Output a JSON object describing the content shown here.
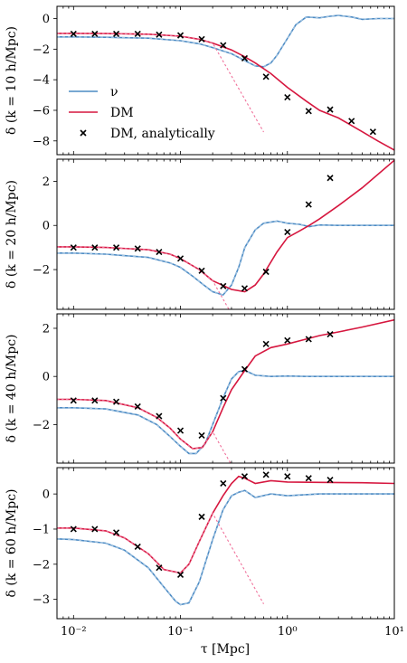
{
  "figure": {
    "xlabel": "τ [Mpc]",
    "x_scale": "log",
    "xlim": [
      0.007,
      10
    ],
    "x_tick_labels": [
      "10⁻²",
      "10⁻¹",
      "10⁰",
      "10¹"
    ]
  },
  "legend": {
    "placement": "lower-left (top panel)",
    "entries": [
      {
        "label": "ν",
        "style": "solid-line",
        "color": "#4c8bc4"
      },
      {
        "label": "DM",
        "style": "solid-line",
        "color": "#d6173f"
      },
      {
        "label": "DM, analytically",
        "style": "x-marker",
        "color": "#000000"
      }
    ]
  },
  "colors": {
    "nu": "#4c8bc4",
    "dm": "#d6173f",
    "analytic": "#000000",
    "dm_dashed": "#f0709a",
    "nu_dashed": "#a8c8e4"
  },
  "chart_data": [
    {
      "type": "line",
      "ylabel": "δ (k = 10 h/Mpc)",
      "ylim": [
        -8.9,
        0.8
      ],
      "yticks": [
        0,
        -2,
        -4,
        -6,
        -8
      ],
      "ytick_labels": [
        "0",
        "−2",
        "−4",
        "−6",
        "−8"
      ],
      "series": [
        {
          "name": "ν",
          "x": [
            0.007,
            0.01,
            0.02,
            0.05,
            0.1,
            0.15,
            0.2,
            0.3,
            0.4,
            0.5,
            0.6,
            0.7,
            0.8,
            1.0,
            1.2,
            1.5,
            2.0,
            2.5,
            3.0,
            4.0,
            5.0,
            7.0,
            10.0
          ],
          "y": [
            -1.2,
            -1.2,
            -1.22,
            -1.28,
            -1.45,
            -1.65,
            -1.9,
            -2.3,
            -2.75,
            -3.1,
            -3.15,
            -2.9,
            -2.4,
            -1.3,
            -0.4,
            0.1,
            0.05,
            0.15,
            0.2,
            0.1,
            -0.05,
            0.0,
            0.0
          ]
        },
        {
          "name": "DM",
          "x": [
            0.007,
            0.01,
            0.02,
            0.05,
            0.1,
            0.15,
            0.2,
            0.3,
            0.4,
            0.5,
            0.7,
            1.0,
            1.5,
            2.0,
            3.0,
            5.0,
            7.0,
            10.0
          ],
          "y": [
            -0.97,
            -0.97,
            -0.98,
            -1.02,
            -1.15,
            -1.35,
            -1.6,
            -2.05,
            -2.5,
            -2.9,
            -3.6,
            -4.5,
            -5.4,
            -6.0,
            -6.5,
            -7.4,
            -8.0,
            -8.6
          ]
        },
        {
          "name": "DM, analytically",
          "x": [
            0.01,
            0.0158,
            0.0251,
            0.0398,
            0.0631,
            0.1,
            0.158,
            0.251,
            0.398,
            0.631,
            1.0,
            1.58,
            2.51,
            3.98,
            6.31
          ],
          "y": [
            -1.0,
            -1.0,
            -1.0,
            -1.0,
            -1.05,
            -1.1,
            -1.35,
            -1.75,
            -2.6,
            -3.8,
            -5.15,
            -6.05,
            -5.95,
            -6.7,
            -7.4
          ]
        }
      ]
    },
    {
      "type": "line",
      "ylabel": "δ (k = 20 h/Mpc)",
      "ylim": [
        -3.8,
        3.0
      ],
      "yticks": [
        2,
        0,
        -2
      ],
      "ytick_labels": [
        "2",
        "0",
        "−2"
      ],
      "series": [
        {
          "name": "ν",
          "x": [
            0.007,
            0.01,
            0.02,
            0.05,
            0.08,
            0.1,
            0.13,
            0.16,
            0.2,
            0.25,
            0.3,
            0.35,
            0.4,
            0.5,
            0.6,
            0.8,
            1.0,
            1.3,
            1.6,
            2.0,
            3.0,
            5.0,
            10.0
          ],
          "y": [
            -1.25,
            -1.25,
            -1.3,
            -1.45,
            -1.7,
            -1.9,
            -2.3,
            -2.65,
            -3.0,
            -3.15,
            -2.7,
            -1.9,
            -1.0,
            -0.2,
            0.1,
            0.2,
            0.1,
            0.05,
            -0.05,
            0.02,
            0.0,
            0.0,
            0.0
          ]
        },
        {
          "name": "DM",
          "x": [
            0.007,
            0.01,
            0.02,
            0.05,
            0.08,
            0.1,
            0.15,
            0.2,
            0.3,
            0.4,
            0.5,
            0.6,
            0.8,
            1.0,
            1.3,
            1.6,
            2.0,
            3.0,
            5.0,
            10.0
          ],
          "y": [
            -0.97,
            -0.97,
            -1.0,
            -1.1,
            -1.3,
            -1.5,
            -2.0,
            -2.5,
            -2.9,
            -3.0,
            -2.7,
            -2.2,
            -1.2,
            -0.55,
            -0.25,
            0.0,
            0.3,
            0.9,
            1.7,
            2.95
          ]
        },
        {
          "name": "DM, analytically",
          "x": [
            0.01,
            0.0158,
            0.0251,
            0.0398,
            0.0631,
            0.1,
            0.158,
            0.251,
            0.398,
            0.631,
            1.0,
            1.58,
            2.51
          ],
          "y": [
            -1.0,
            -1.0,
            -1.0,
            -1.05,
            -1.2,
            -1.5,
            -2.05,
            -2.75,
            -2.85,
            -2.1,
            -0.3,
            0.95,
            2.15
          ]
        }
      ]
    },
    {
      "type": "line",
      "ylabel": "δ (k = 40 h/Mpc)",
      "ylim": [
        -3.6,
        2.6
      ],
      "yticks": [
        2,
        0,
        -2
      ],
      "ytick_labels": [
        "2",
        "0",
        "−2"
      ],
      "series": [
        {
          "name": "ν",
          "x": [
            0.007,
            0.01,
            0.02,
            0.04,
            0.06,
            0.08,
            0.1,
            0.12,
            0.14,
            0.17,
            0.2,
            0.25,
            0.3,
            0.35,
            0.4,
            0.5,
            0.7,
            1.0,
            1.5,
            2.0,
            3.0,
            5.0,
            10.0
          ],
          "y": [
            -1.3,
            -1.3,
            -1.35,
            -1.6,
            -2.0,
            -2.5,
            -2.9,
            -3.2,
            -3.2,
            -2.8,
            -2.0,
            -0.9,
            -0.1,
            0.2,
            0.25,
            0.05,
            0.0,
            0.02,
            0.0,
            0.0,
            0.0,
            0.0,
            0.0
          ]
        },
        {
          "name": "DM",
          "x": [
            0.007,
            0.01,
            0.02,
            0.04,
            0.06,
            0.08,
            0.1,
            0.13,
            0.16,
            0.2,
            0.25,
            0.3,
            0.4,
            0.5,
            0.7,
            1.0,
            1.5,
            2.0,
            3.0,
            5.0,
            10.0
          ],
          "y": [
            -0.95,
            -0.95,
            -1.0,
            -1.3,
            -1.7,
            -2.15,
            -2.6,
            -3.0,
            -2.95,
            -2.3,
            -1.3,
            -0.55,
            0.25,
            0.85,
            1.2,
            1.35,
            1.55,
            1.7,
            1.85,
            2.05,
            2.35
          ]
        },
        {
          "name": "DM, analytically",
          "x": [
            0.01,
            0.0158,
            0.0251,
            0.0398,
            0.0631,
            0.1,
            0.158,
            0.251,
            0.398,
            0.631,
            1.0,
            1.58,
            2.51
          ],
          "y": [
            -1.0,
            -1.0,
            -1.05,
            -1.25,
            -1.65,
            -2.25,
            -2.45,
            -0.9,
            0.3,
            1.35,
            1.5,
            1.55,
            1.75
          ]
        }
      ]
    },
    {
      "type": "line",
      "ylabel": "δ (k = 60 h/Mpc)",
      "ylim": [
        -3.55,
        0.75
      ],
      "yticks": [
        0,
        -1,
        -2,
        -3
      ],
      "ytick_labels": [
        "0",
        "−1",
        "−2",
        "−3"
      ],
      "series": [
        {
          "name": "ν",
          "x": [
            0.007,
            0.01,
            0.02,
            0.03,
            0.05,
            0.07,
            0.09,
            0.1,
            0.12,
            0.15,
            0.2,
            0.25,
            0.3,
            0.35,
            0.4,
            0.5,
            0.7,
            1.0,
            2.0,
            5.0,
            10.0
          ],
          "y": [
            -1.28,
            -1.3,
            -1.4,
            -1.6,
            -2.1,
            -2.65,
            -3.05,
            -3.15,
            -3.1,
            -2.5,
            -1.3,
            -0.45,
            -0.05,
            0.05,
            0.1,
            -0.1,
            0.0,
            -0.05,
            0.0,
            0.0,
            0.0
          ]
        },
        {
          "name": "DM",
          "x": [
            0.007,
            0.01,
            0.02,
            0.03,
            0.05,
            0.07,
            0.1,
            0.12,
            0.15,
            0.2,
            0.25,
            0.3,
            0.35,
            0.4,
            0.5,
            0.7,
            1.0,
            2.0,
            5.0,
            10.0
          ],
          "y": [
            -0.97,
            -0.97,
            -1.05,
            -1.25,
            -1.7,
            -2.15,
            -2.25,
            -2.0,
            -1.35,
            -0.55,
            -0.05,
            0.3,
            0.5,
            0.45,
            0.3,
            0.38,
            0.34,
            0.33,
            0.32,
            0.3
          ]
        },
        {
          "name": "DM, analytically",
          "x": [
            0.01,
            0.0158,
            0.0251,
            0.0398,
            0.0631,
            0.1,
            0.158,
            0.251,
            0.398,
            0.631,
            1.0,
            1.58,
            2.51
          ],
          "y": [
            -1.0,
            -1.0,
            -1.1,
            -1.5,
            -2.1,
            -2.3,
            -0.65,
            0.3,
            0.5,
            0.55,
            0.5,
            0.45,
            0.4
          ]
        }
      ]
    }
  ]
}
